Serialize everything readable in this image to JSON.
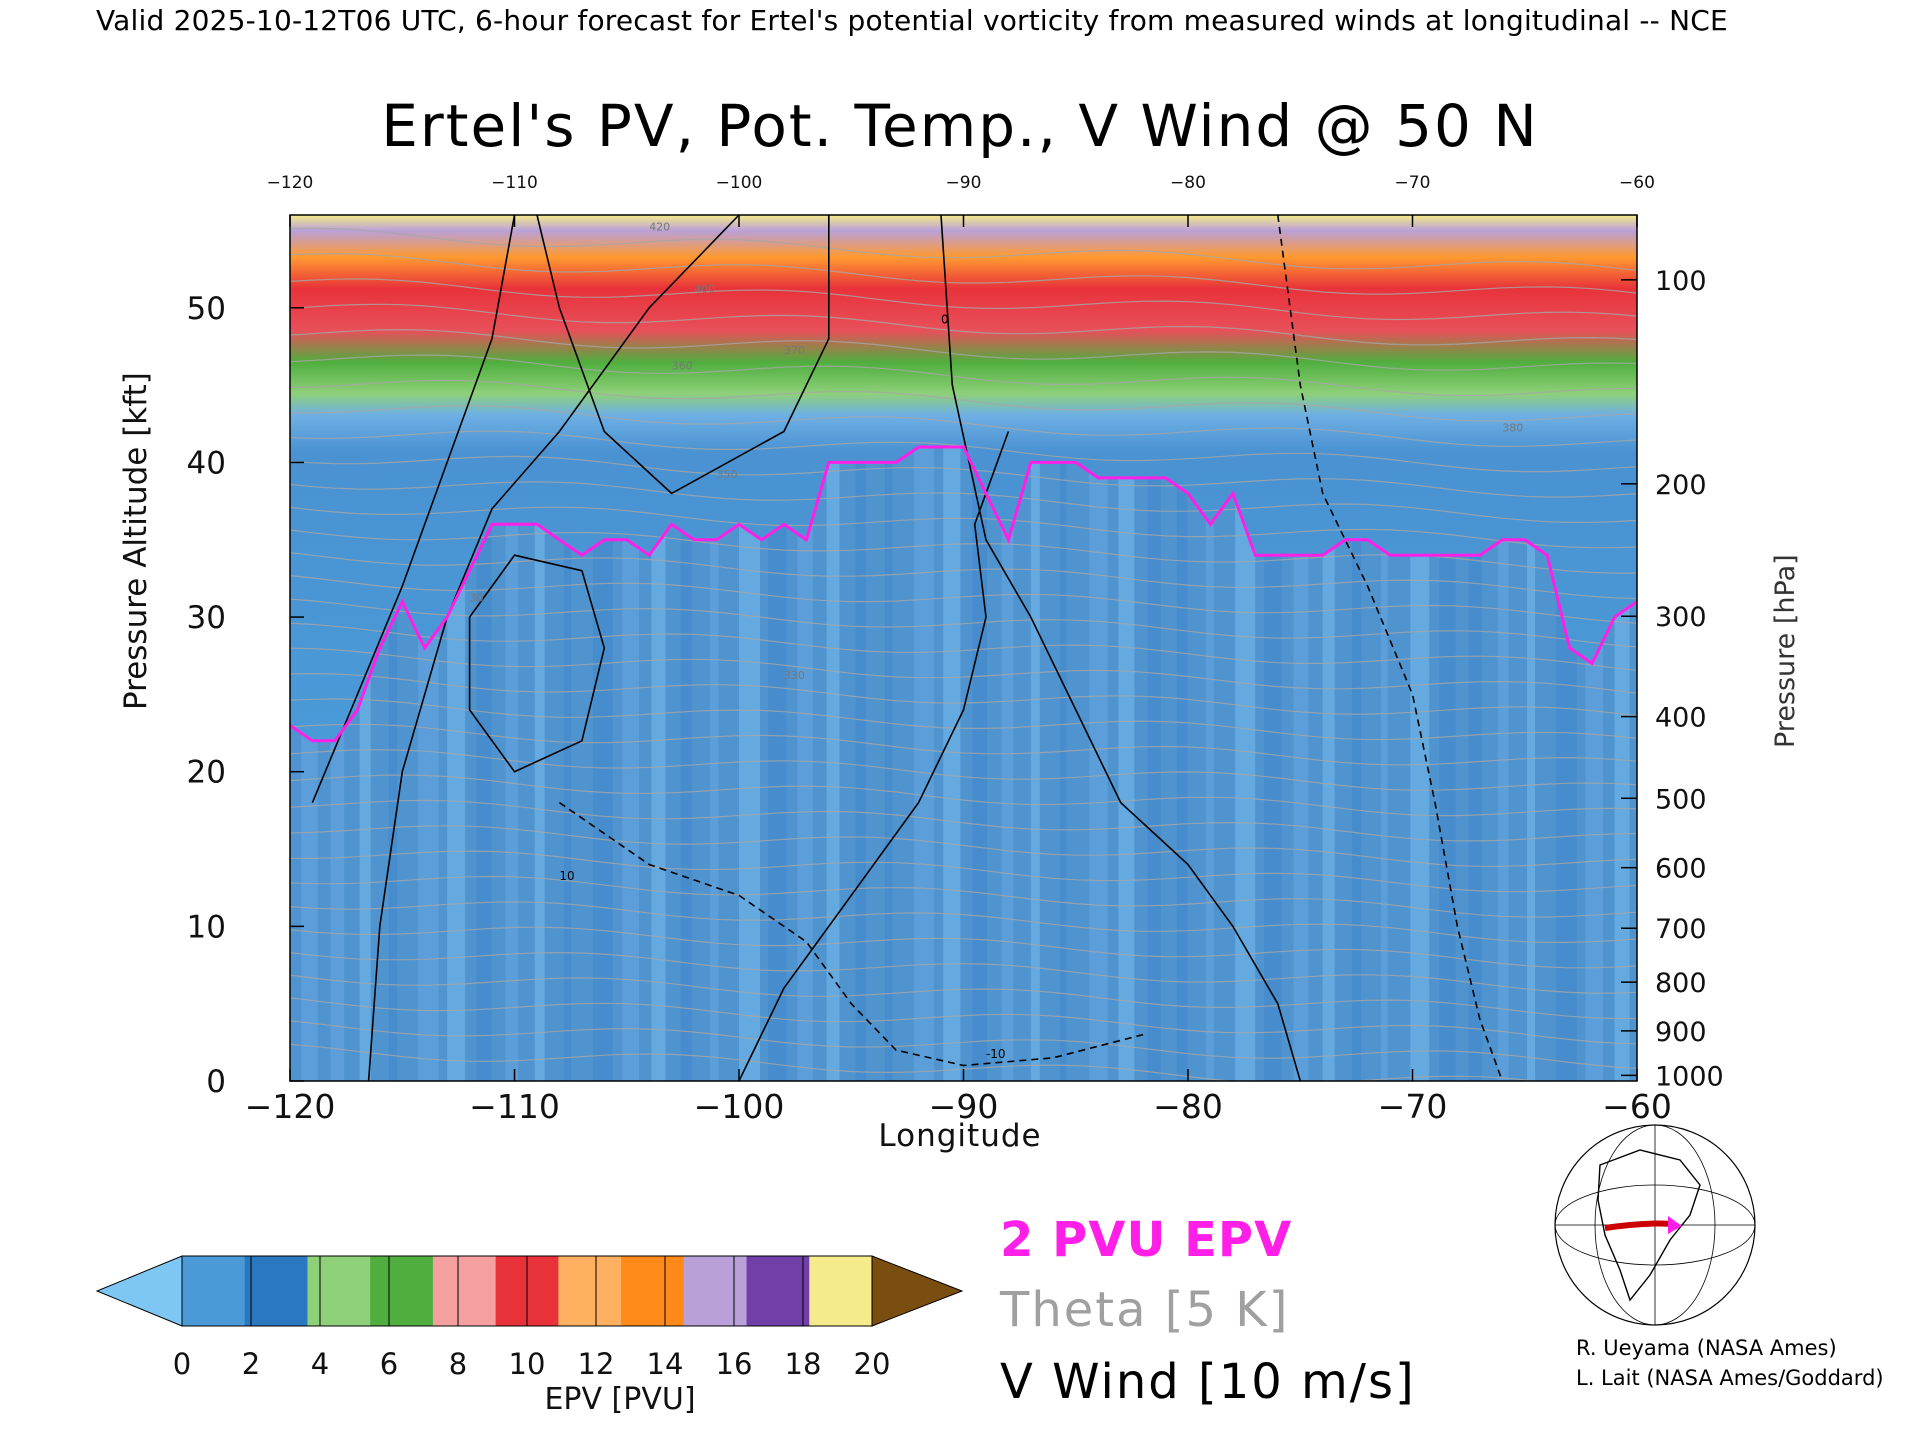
{
  "header": "Valid 2025-10-12T06 UTC, 6-hour forecast for Ertel's potential vorticity from measured winds at longitudinal -- NCE",
  "chart_data": {
    "type": "heatmap",
    "title": "Ertel's PV, Pot. Temp., V Wind @ 50 N",
    "xlabel": "Longitude",
    "ylabel": "Pressure Altitude [kft]",
    "y2label": "Pressure [hPa]",
    "xlim": [
      -120,
      -60
    ],
    "ylim": [
      0,
      56
    ],
    "x_ticks": [
      -120,
      -110,
      -100,
      -90,
      -80,
      -70,
      -60
    ],
    "y_ticks": [
      0,
      10,
      20,
      30,
      40,
      50
    ],
    "pressure_ticks": [
      100,
      200,
      300,
      400,
      500,
      600,
      700,
      800,
      900,
      1000
    ],
    "colorbar": {
      "label": "EPV [PVU]",
      "ticks": [
        0,
        2,
        4,
        6,
        8,
        10,
        12,
        14,
        16,
        18,
        20
      ],
      "extend": "both",
      "colors": [
        "#7ec7f5",
        "#4a9ad8",
        "#2a78c0",
        "#8fd07a",
        "#4fae3e",
        "#f4a0a0",
        "#e8323a",
        "#ffb060",
        "#ff8a1a",
        "#b9a0d8",
        "#7040a8",
        "#f5eb8a",
        "#7a4e10"
      ]
    },
    "tropopause_2pvu_kft": [
      [
        -120,
        23
      ],
      [
        -119,
        22
      ],
      [
        -118,
        22
      ],
      [
        -117,
        24
      ],
      [
        -116,
        28
      ],
      [
        -115,
        31
      ],
      [
        -114,
        28
      ],
      [
        -113,
        30
      ],
      [
        -112,
        33
      ],
      [
        -111,
        36
      ],
      [
        -110,
        36
      ],
      [
        -109,
        36
      ],
      [
        -108,
        35
      ],
      [
        -107,
        34
      ],
      [
        -106,
        35
      ],
      [
        -105,
        35
      ],
      [
        -104,
        34
      ],
      [
        -103,
        36
      ],
      [
        -102,
        35
      ],
      [
        -101,
        35
      ],
      [
        -100,
        36
      ],
      [
        -99,
        35
      ],
      [
        -98,
        36
      ],
      [
        -97,
        35
      ],
      [
        -96,
        40
      ],
      [
        -95,
        40
      ],
      [
        -94,
        40
      ],
      [
        -93,
        40
      ],
      [
        -92,
        41
      ],
      [
        -91,
        41
      ],
      [
        -90,
        41
      ],
      [
        -89,
        38
      ],
      [
        -88,
        35
      ],
      [
        -87,
        40
      ],
      [
        -86,
        40
      ],
      [
        -85,
        40
      ],
      [
        -84,
        39
      ],
      [
        -83,
        39
      ],
      [
        -82,
        39
      ],
      [
        -81,
        39
      ],
      [
        -80,
        38
      ],
      [
        -79,
        36
      ],
      [
        -78,
        38
      ],
      [
        -77,
        34
      ],
      [
        -76,
        34
      ],
      [
        -75,
        34
      ],
      [
        -74,
        34
      ],
      [
        -73,
        35
      ],
      [
        -72,
        35
      ],
      [
        -71,
        34
      ],
      [
        -70,
        34
      ],
      [
        -69,
        34
      ],
      [
        -68,
        34
      ],
      [
        -67,
        34
      ],
      [
        -66,
        35
      ],
      [
        -65,
        35
      ],
      [
        -64,
        34
      ],
      [
        -63,
        28
      ],
      [
        -62,
        27
      ],
      [
        -61,
        30
      ],
      [
        -60,
        31
      ]
    ],
    "theta_labels": [
      "30",
      "330",
      "350",
      "360",
      "370",
      "380",
      "400",
      "420"
    ],
    "vwind_labels": [
      "0",
      "10",
      "-10"
    ]
  },
  "legend": {
    "pv": "2 PVU EPV",
    "theta": "Theta [5 K]",
    "wind": "V Wind [10 m/s]"
  },
  "credits": {
    "line1": "R. Ueyama (NASA Ames)",
    "line2": "L. Lait (NASA Ames/Goddard)"
  }
}
